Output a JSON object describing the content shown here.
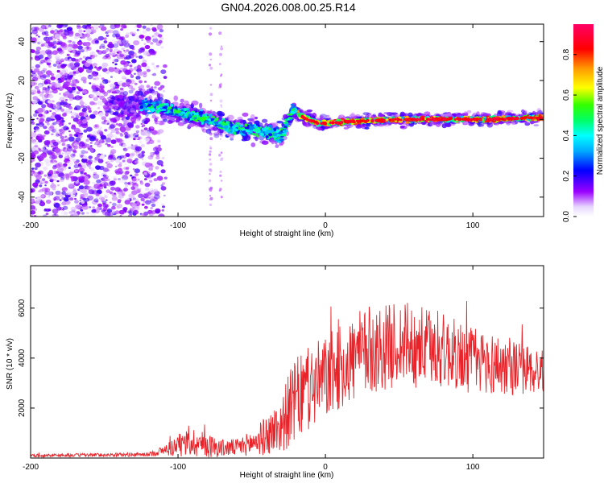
{
  "title": "GN04.2026.008.00.25.R14",
  "chart_data": [
    {
      "type": "heatmap",
      "name": "spectrogram",
      "xlabel": "Height of straight line (km)",
      "ylabel": "Frequency (Hz)",
      "xlim": [
        -200,
        148
      ],
      "ylim": [
        -50,
        49
      ],
      "xticks": [
        -200,
        -100,
        0,
        100
      ],
      "yticks": [
        -40,
        -20,
        0,
        20,
        40
      ],
      "colorbar": {
        "label": "Normalized spectral amplitude",
        "range": [
          0.0,
          0.95
        ],
        "ticks": [
          0.0,
          0.2,
          0.4,
          0.6,
          0.8
        ]
      },
      "ridge": {
        "description_points_x": [
          -200,
          -150,
          -120,
          -100,
          -80,
          -60,
          -45,
          -30,
          -22,
          -15,
          -5,
          0,
          20,
          50,
          80,
          110,
          148
        ],
        "description_points_y": [
          5,
          8,
          7,
          4,
          0,
          -5,
          -6,
          -8,
          5,
          1,
          -2,
          -2,
          -1,
          0,
          0,
          0,
          1
        ]
      }
    },
    {
      "type": "line",
      "name": "snr",
      "xlabel": "Height of straight line (km)",
      "ylabel": "SNR (10 * v/v)",
      "xlim": [
        -200,
        148
      ],
      "ylim": [
        0,
        7700
      ],
      "xticks": [
        -200,
        -100,
        0,
        100
      ],
      "yticks": [
        2000,
        4000,
        6000
      ],
      "series": [
        {
          "name": "SNR",
          "color": "#e8242a",
          "envelope_x": [
            -200,
            -120,
            -110,
            -100,
            -90,
            -80,
            -70,
            -60,
            -50,
            -40,
            -30,
            -25,
            -20,
            -10,
            0,
            10,
            20,
            30,
            40,
            50,
            60,
            70,
            80,
            90,
            100,
            110,
            120,
            130,
            140,
            148
          ],
          "envelope_mean": [
            100,
            140,
            300,
            500,
            650,
            500,
            400,
            420,
            600,
            900,
            1300,
            1900,
            2300,
            2800,
            3200,
            3600,
            4000,
            4300,
            4400,
            4600,
            4500,
            4400,
            4300,
            4100,
            3900,
            3800,
            3700,
            3600,
            3500,
            3500
          ],
          "envelope_amplitude": [
            60,
            80,
            200,
            450,
            600,
            500,
            350,
            350,
            500,
            800,
            1100,
            1500,
            1700,
            1700,
            1700,
            1700,
            1800,
            1800,
            1700,
            1700,
            1700,
            1600,
            1500,
            1400,
            1400,
            1300,
            1200,
            1100,
            1000,
            900
          ]
        }
      ]
    }
  ]
}
